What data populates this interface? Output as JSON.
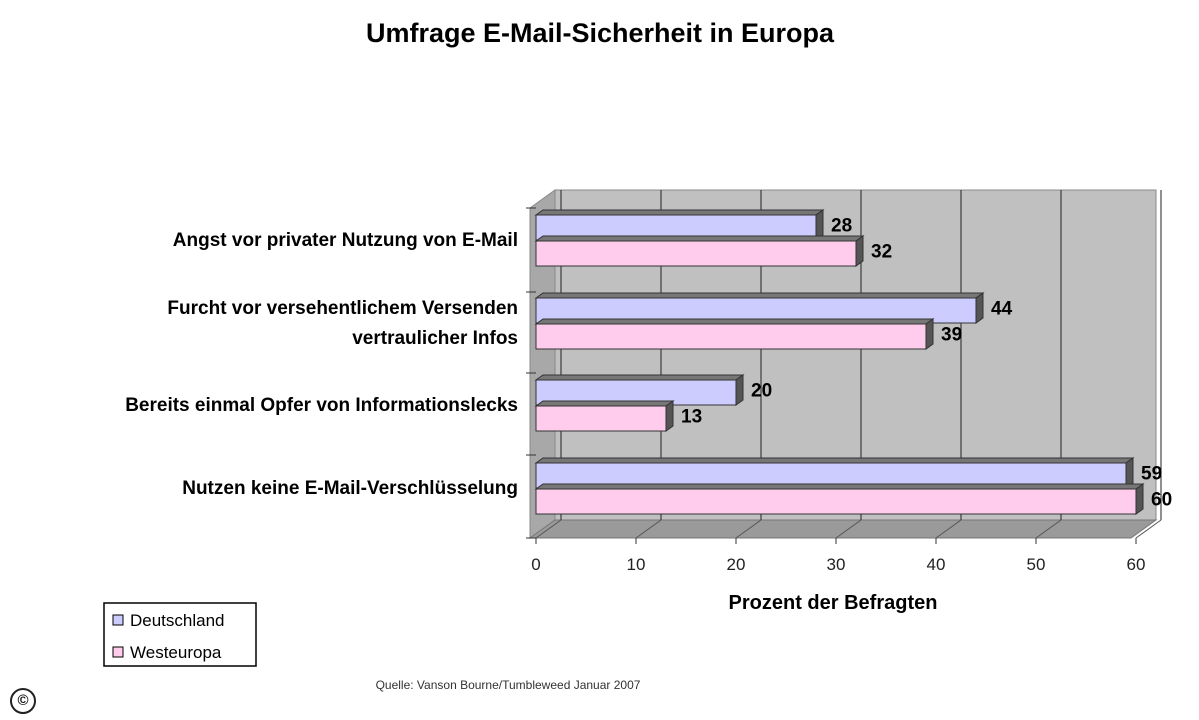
{
  "chart_data": {
    "type": "bar",
    "orientation": "horizontal",
    "title": "Umfrage E-Mail-Sicherheit in Europa",
    "categories": [
      [
        "Angst vor privater Nutzung von E-Mail"
      ],
      [
        "Furcht vor versehentlichem Versenden",
        "vertraulicher Infos"
      ],
      [
        "Bereits einmal Opfer von Informationslecks"
      ],
      [
        "Nutzen keine E-Mail-Verschlüsselung"
      ]
    ],
    "series": [
      {
        "name": "Deutschland",
        "values": [
          28,
          44,
          20,
          59
        ],
        "color": "#ccccff"
      },
      {
        "name": "Westeuropa",
        "values": [
          32,
          39,
          13,
          60
        ],
        "color": "#ffccee"
      }
    ],
    "xlabel": "Prozent der Befragten",
    "xlim": [
      0,
      60
    ],
    "xticks": [
      0,
      10,
      20,
      30,
      40,
      50,
      60
    ],
    "grid": true,
    "legend_position": "bottom-left",
    "source": "Quelle: Vanson Bourne/Tumbleweed Januar 2007",
    "plot_background": "#c0c0c0"
  },
  "badge": {
    "symbol": "©"
  }
}
